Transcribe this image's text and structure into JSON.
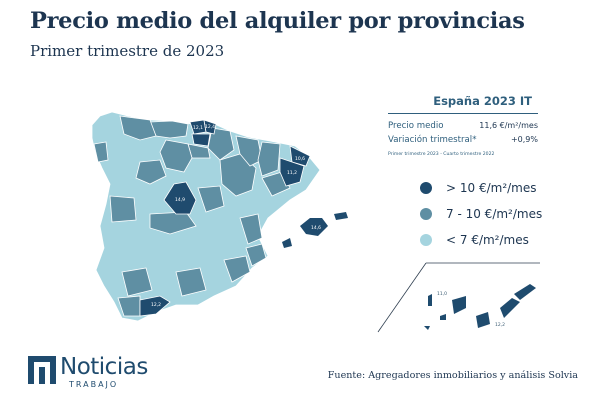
{
  "title": "Precio medio del alquiler por provincias",
  "subtitle": "Primer trimestre de 2023",
  "stats": {
    "heading": "España 2023 IT",
    "rows": [
      {
        "label": "Precio medio",
        "value": "11,6 €/m²/mes"
      },
      {
        "label": "Variación trimestral*",
        "value": "+0,9%"
      }
    ],
    "note": "Primer trimestre 2023 - Cuarto trimestre 2022"
  },
  "legend": [
    {
      "label": "> 10 €/m²/mes",
      "color": "#1f4b6e"
    },
    {
      "label": "7 - 10 €/m²/mes",
      "color": "#5f8fa3"
    },
    {
      "label": "< 7 €/m²/mes",
      "color": "#a5d4df"
    }
  ],
  "map": {
    "category_colors": {
      "high": "#1f4b6e",
      "mid": "#5f8fa3",
      "low": "#a5d4df"
    },
    "province_labels": {
      "madrid": "14,9",
      "barcelona": "11,2",
      "girona": "10,6",
      "bizkaia": "12,1",
      "gipuzkoa": "12,4",
      "baleares": "14,6",
      "malaga": "12,2",
      "las_palmas": "11,0",
      "santa_cruz": "12,2"
    }
  },
  "logo": {
    "main": "Noticias",
    "sub": "TRABAJO"
  },
  "source": "Fuente: Agregadores inmobiliarios y análisis Solvia"
}
